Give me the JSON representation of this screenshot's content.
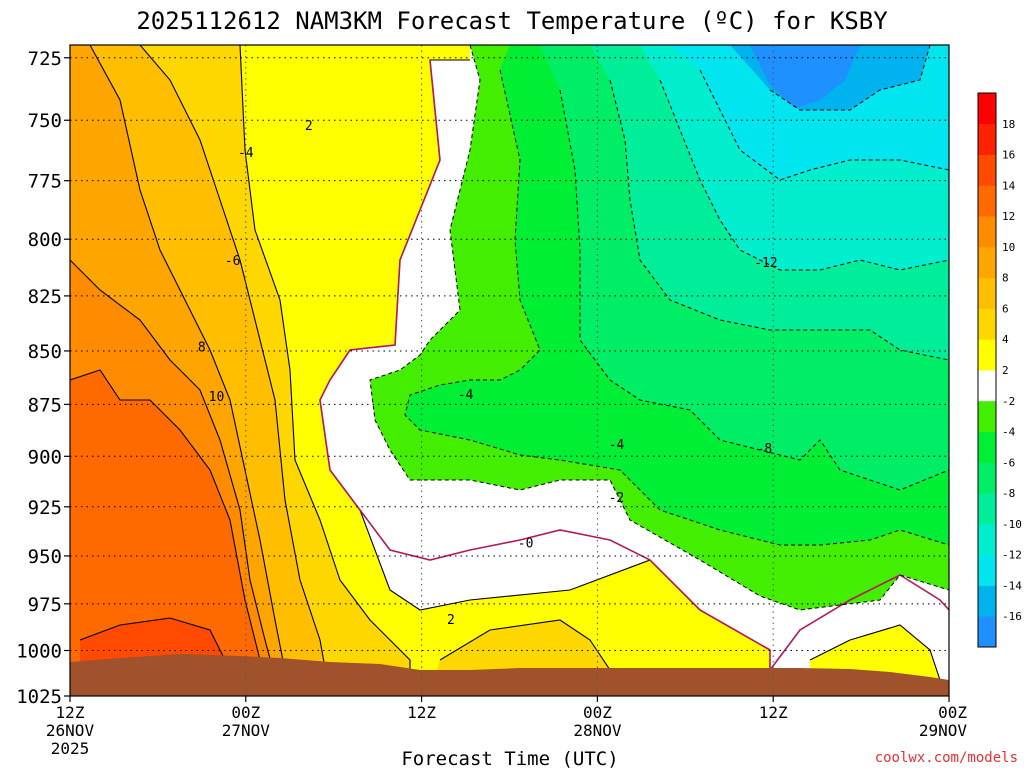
{
  "title": "2025112612 NAM3KM Forecast Temperature (ºC) for KSBY",
  "xlabel": "Forecast Time (UTC)",
  "credit": "coolwx.com/models",
  "chart_data": {
    "type": "heatmap",
    "title": "2025112612 NAM3KM Forecast Temperature (ºC) for KSBY",
    "xlabel": "Forecast Time (UTC)",
    "ylabel": "",
    "y_axis_scale": "log-pressure",
    "y_ticks": [
      725,
      750,
      775,
      800,
      825,
      850,
      875,
      900,
      925,
      950,
      975,
      1000,
      1025
    ],
    "ylim": [
      1025,
      720
    ],
    "x_ticks": [
      {
        "hour": 0,
        "lines": [
          "12Z",
          "26NOV",
          "2025"
        ]
      },
      {
        "hour": 12,
        "lines": [
          "00Z",
          "27NOV"
        ]
      },
      {
        "hour": 24,
        "lines": [
          "12Z"
        ]
      },
      {
        "hour": 36,
        "lines": [
          "00Z",
          "28NOV"
        ]
      },
      {
        "hour": 48,
        "lines": [
          "12Z"
        ]
      },
      {
        "hour": 60,
        "lines": [
          "00Z",
          "29NOV"
        ]
      }
    ],
    "xlim_hours": [
      0,
      60
    ],
    "grid": true,
    "colorbar": {
      "position": "right",
      "levels": [
        -18,
        -16,
        -14,
        -12,
        -10,
        -8,
        -6,
        -4,
        -2,
        2,
        4,
        6,
        8,
        10,
        12,
        14,
        16,
        18
      ],
      "labels": [
        "18",
        "16",
        "14",
        "12",
        "10",
        "8",
        "6",
        "4",
        "2",
        "-2",
        "-4",
        "-6",
        "-8",
        "-10",
        "-12",
        "-14",
        "-16"
      ],
      "colors": [
        "#1e90ff",
        "#00b2ee",
        "#00e5ee",
        "#00eecd",
        "#00ee9a",
        "#00ee66",
        "#00ee33",
        "#44ee00",
        "#ffffff",
        "#ffff00",
        "#ffd700",
        "#ffbf00",
        "#ffa500",
        "#ff8c00",
        "#ff6a00",
        "#ff4a00",
        "#ff2200",
        "#ff0000"
      ]
    },
    "contour_labels": [
      {
        "text": "2",
        "hour": 16.3,
        "p": 752
      },
      {
        "text": "-4",
        "hour": 12.0,
        "p": 763
      },
      {
        "text": "-6",
        "hour": 11.1,
        "p": 809
      },
      {
        "text": "8",
        "hour": 9.0,
        "p": 848
      },
      {
        "text": "10",
        "hour": 10.0,
        "p": 871
      },
      {
        "text": "-4",
        "hour": 27.0,
        "p": 870
      },
      {
        "text": "-4",
        "hour": 37.3,
        "p": 894
      },
      {
        "text": "-8",
        "hour": 47.4,
        "p": 896
      },
      {
        "text": "-12",
        "hour": 47.5,
        "p": 810
      },
      {
        "text": "-2",
        "hour": 37.3,
        "p": 920
      },
      {
        "text": "-0",
        "hour": 31.1,
        "p": 943
      },
      {
        "text": "2",
        "hour": 26.0,
        "p": 983
      }
    ],
    "terrain_pressure": [
      1010,
      1004,
      1006,
      1012,
      1013,
      1012,
      1017
    ]
  }
}
